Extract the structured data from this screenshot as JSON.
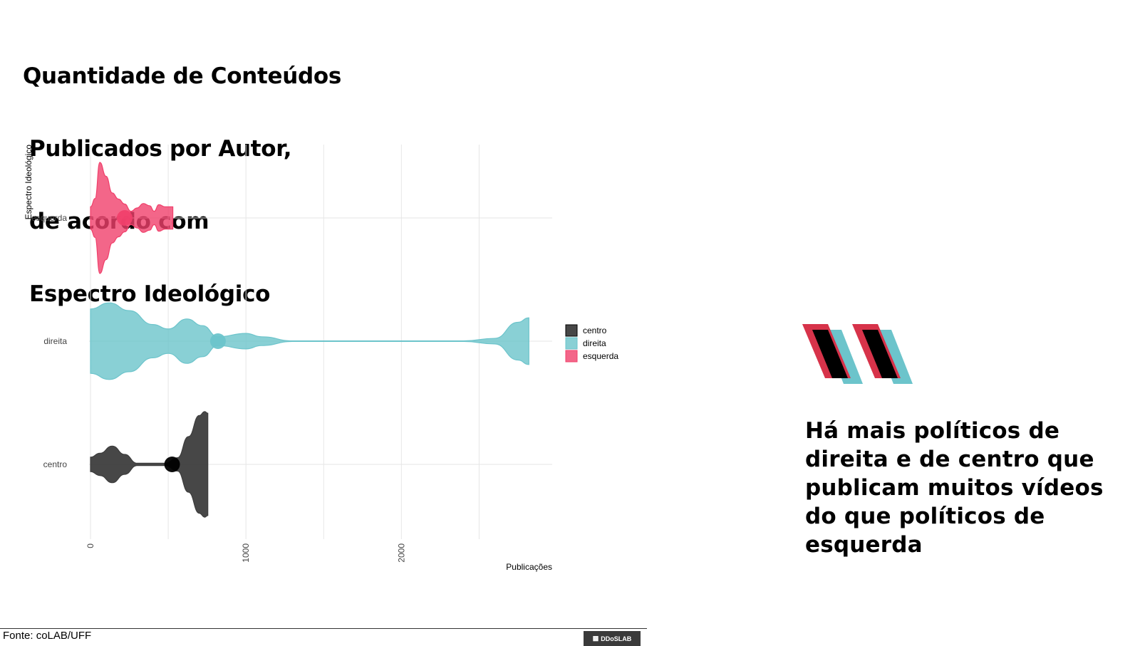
{
  "page": {
    "title_lines": [
      "Quantidade de Conteúdos",
      "Publicados por Autor,",
      "de acordo com",
      "Espectro Ideológico"
    ],
    "statement_lines": [
      "Há mais políticos de",
      "direita e de centro que",
      "publicam muitos vídeos",
      "do que políticos de",
      "esquerda"
    ],
    "source": "Fonte: coLAB/UFF",
    "brand": "DDoSLAB",
    "quote_colors": {
      "red": "#d7334a",
      "teal": "#6cc4cb",
      "black": "#000000"
    }
  },
  "chart_data": {
    "type": "violin",
    "xlabel": "Publicações",
    "ylabel": "Espectro Ideológico",
    "xlim": [
      0,
      2970
    ],
    "x_ticks": [
      0,
      1000,
      2000
    ],
    "x_gridlines": [
      0,
      500,
      1000,
      1500,
      2000,
      2500
    ],
    "categories": [
      "esquerda",
      "direita",
      "centro"
    ],
    "legend": {
      "placement": "right",
      "entries": [
        "centro",
        "direita",
        "esquerda"
      ]
    },
    "series": [
      {
        "name": "esquerda",
        "color": "#f0406b",
        "mean_point": 220,
        "x_range": [
          0,
          530
        ],
        "profile": [
          [
            0,
            0.2
          ],
          [
            30,
            0.35
          ],
          [
            60,
            1.0
          ],
          [
            100,
            0.75
          ],
          [
            140,
            0.45
          ],
          [
            180,
            0.34
          ],
          [
            220,
            0.25
          ],
          [
            260,
            0.12
          ],
          [
            300,
            0.18
          ],
          [
            340,
            0.26
          ],
          [
            380,
            0.22
          ],
          [
            410,
            0.12
          ],
          [
            440,
            0.24
          ],
          [
            480,
            0.2
          ],
          [
            530,
            0.2
          ]
        ]
      },
      {
        "name": "direita",
        "color": "#6cc4cb",
        "mean_point": 820,
        "x_range": [
          0,
          2820
        ],
        "profile": [
          [
            0,
            0.58
          ],
          [
            120,
            0.69
          ],
          [
            250,
            0.55
          ],
          [
            400,
            0.3
          ],
          [
            500,
            0.22
          ],
          [
            620,
            0.4
          ],
          [
            720,
            0.28
          ],
          [
            820,
            0.08
          ],
          [
            1000,
            0.14
          ],
          [
            1100,
            0.08
          ],
          [
            1300,
            0.005
          ],
          [
            2400,
            0.005
          ],
          [
            2600,
            0.05
          ],
          [
            2750,
            0.34
          ],
          [
            2820,
            0.42
          ]
        ]
      },
      {
        "name": "centro",
        "color": "#3d3d3d",
        "mean_point": 525,
        "x_range": [
          0,
          755
        ],
        "profile": [
          [
            0,
            0.13
          ],
          [
            60,
            0.2
          ],
          [
            140,
            0.33
          ],
          [
            220,
            0.18
          ],
          [
            300,
            0.02
          ],
          [
            480,
            0.02
          ],
          [
            560,
            0.12
          ],
          [
            630,
            0.5
          ],
          [
            700,
            0.88
          ],
          [
            735,
            0.95
          ],
          [
            755,
            0.92
          ]
        ]
      }
    ]
  }
}
